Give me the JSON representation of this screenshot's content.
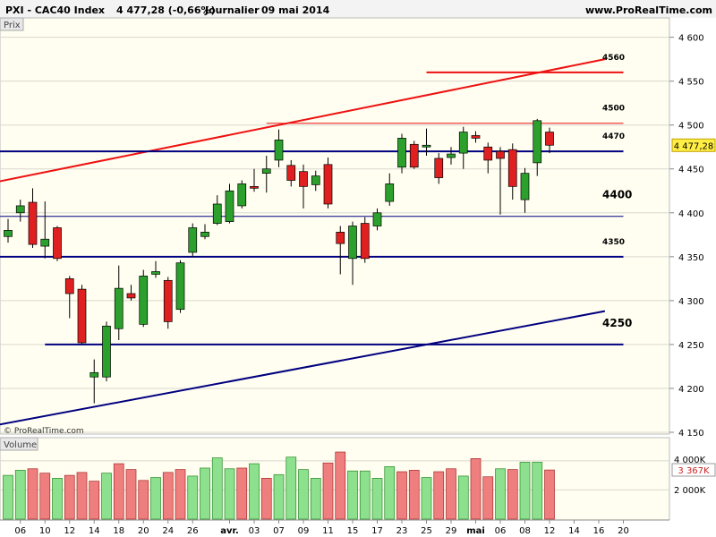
{
  "header": {
    "instrument": "PXI - CAC40 Index",
    "quote": "4 477,28 (-0,66%)",
    "timeframe": "Journalier",
    "date": "09 mai 2014",
    "site": "www.ProRealTime.com"
  },
  "price_panel": {
    "label": "Prix",
    "copyright": "© ProRealTime.com",
    "last_price_label": "4 477,28"
  },
  "volume_panel": {
    "label": "Volume",
    "ticks": [
      "4 000K",
      "2 000K"
    ],
    "last_volume_label": "3 367K"
  },
  "colors": {
    "background": "#fffef0",
    "up": "#2ca02c",
    "down": "#e02020",
    "up_volume": "#8de08d",
    "down_volume": "#ef7f7f",
    "support_line": "#000080",
    "resistance_line": "#ee1111"
  },
  "chart_data": [
    {
      "type": "candlestick",
      "title": "",
      "ylim": [
        4150,
        4620
      ],
      "y_ticks": [
        4150,
        4200,
        4250,
        4300,
        4350,
        4400,
        4450,
        4500,
        4550,
        4600
      ],
      "y_tick_labels": [
        "4 150",
        "4 200",
        "4 250",
        "4 300",
        "4 350",
        "4 400",
        "4 450",
        "4 500",
        "4 550",
        "4 600"
      ],
      "x_tick_labels": [
        {
          "i": 1,
          "label": "06"
        },
        {
          "i": 3,
          "label": "10"
        },
        {
          "i": 5,
          "label": "12"
        },
        {
          "i": 7,
          "label": "14"
        },
        {
          "i": 9,
          "label": "18"
        },
        {
          "i": 11,
          "label": "20"
        },
        {
          "i": 13,
          "label": "24"
        },
        {
          "i": 15,
          "label": "26"
        },
        {
          "i": 18,
          "label": "avr."
        },
        {
          "i": 20,
          "label": "03"
        },
        {
          "i": 22,
          "label": "07"
        },
        {
          "i": 24,
          "label": "09"
        },
        {
          "i": 26,
          "label": "11"
        },
        {
          "i": 28,
          "label": "15"
        },
        {
          "i": 30,
          "label": "17"
        },
        {
          "i": 32,
          "label": "23"
        },
        {
          "i": 34,
          "label": "25"
        },
        {
          "i": 36,
          "label": "29"
        },
        {
          "i": 38,
          "label": "mai"
        },
        {
          "i": 40,
          "label": "06"
        },
        {
          "i": 42,
          "label": "08"
        },
        {
          "i": 44,
          "label": "12"
        },
        {
          "i": 46,
          "label": "14"
        },
        {
          "i": 48,
          "label": "16"
        },
        {
          "i": 50,
          "label": "20"
        }
      ],
      "bold_x_labels": [
        "avr.",
        "mai"
      ],
      "candles": [
        {
          "o": 4373,
          "h": 4393,
          "l": 4366,
          "c": 4380
        },
        {
          "o": 4400,
          "h": 4415,
          "l": 4390,
          "c": 4408
        },
        {
          "o": 4412,
          "h": 4428,
          "l": 4360,
          "c": 4364
        },
        {
          "o": 4362,
          "h": 4413,
          "l": 4348,
          "c": 4370
        },
        {
          "o": 4383,
          "h": 4385,
          "l": 4345,
          "c": 4348
        },
        {
          "o": 4325,
          "h": 4328,
          "l": 4280,
          "c": 4308
        },
        {
          "o": 4313,
          "h": 4318,
          "l": 4250,
          "c": 4252
        },
        {
          "o": 4213,
          "h": 4233,
          "l": 4183,
          "c": 4218
        },
        {
          "o": 4213,
          "h": 4276,
          "l": 4208,
          "c": 4271
        },
        {
          "o": 4268,
          "h": 4340,
          "l": 4255,
          "c": 4314
        },
        {
          "o": 4308,
          "h": 4318,
          "l": 4300,
          "c": 4303
        },
        {
          "o": 4273,
          "h": 4335,
          "l": 4270,
          "c": 4328
        },
        {
          "o": 4330,
          "h": 4345,
          "l": 4326,
          "c": 4333
        },
        {
          "o": 4323,
          "h": 4327,
          "l": 4268,
          "c": 4276
        },
        {
          "o": 4290,
          "h": 4346,
          "l": 4286,
          "c": 4343
        },
        {
          "o": 4355,
          "h": 4388,
          "l": 4350,
          "c": 4383
        },
        {
          "o": 4373,
          "h": 4387,
          "l": 4370,
          "c": 4378
        },
        {
          "o": 4388,
          "h": 4420,
          "l": 4386,
          "c": 4410
        },
        {
          "o": 4390,
          "h": 4433,
          "l": 4388,
          "c": 4425
        },
        {
          "o": 4408,
          "h": 4437,
          "l": 4405,
          "c": 4433
        },
        {
          "o": 4430,
          "h": 4450,
          "l": 4424,
          "c": 4428
        },
        {
          "o": 4445,
          "h": 4465,
          "l": 4423,
          "c": 4450
        },
        {
          "o": 4460,
          "h": 4495,
          "l": 4452,
          "c": 4483
        },
        {
          "o": 4454,
          "h": 4460,
          "l": 4430,
          "c": 4437
        },
        {
          "o": 4447,
          "h": 4455,
          "l": 4405,
          "c": 4430
        },
        {
          "o": 4432,
          "h": 4448,
          "l": 4425,
          "c": 4442
        },
        {
          "o": 4455,
          "h": 4463,
          "l": 4405,
          "c": 4410
        },
        {
          "o": 4378,
          "h": 4385,
          "l": 4330,
          "c": 4365
        },
        {
          "o": 4348,
          "h": 4390,
          "l": 4318,
          "c": 4385
        },
        {
          "o": 4388,
          "h": 4395,
          "l": 4343,
          "c": 4348
        },
        {
          "o": 4385,
          "h": 4405,
          "l": 4380,
          "c": 4400
        },
        {
          "o": 4413,
          "h": 4445,
          "l": 4408,
          "c": 4433
        },
        {
          "o": 4452,
          "h": 4490,
          "l": 4445,
          "c": 4485
        },
        {
          "o": 4478,
          "h": 4482,
          "l": 4450,
          "c": 4452
        },
        {
          "o": 4475,
          "h": 4496,
          "l": 4465,
          "c": 4477
        },
        {
          "o": 4462,
          "h": 4468,
          "l": 4433,
          "c": 4440
        },
        {
          "o": 4463,
          "h": 4475,
          "l": 4455,
          "c": 4467
        },
        {
          "o": 4468,
          "h": 4498,
          "l": 4450,
          "c": 4492
        },
        {
          "o": 4488,
          "h": 4493,
          "l": 4480,
          "c": 4485
        },
        {
          "o": 4475,
          "h": 4480,
          "l": 4445,
          "c": 4460
        },
        {
          "o": 4470,
          "h": 4475,
          "l": 4398,
          "c": 4462
        },
        {
          "o": 4472,
          "h": 4479,
          "l": 4415,
          "c": 4430
        },
        {
          "o": 4415,
          "h": 4451,
          "l": 4400,
          "c": 4445
        },
        {
          "o": 4457,
          "h": 4507,
          "l": 4442,
          "c": 4505
        },
        {
          "o": 4492,
          "h": 4497,
          "l": 4468,
          "c": 4477
        }
      ],
      "horizontal_levels": [
        {
          "value": 4560,
          "label": "4560",
          "color": "#ee1111",
          "from_i": 34,
          "to_i": 50
        },
        {
          "value": 4502,
          "label": "4500",
          "color": "#ee1111",
          "from_i": 21,
          "to_i": 50
        },
        {
          "value": 4470,
          "label": "4470",
          "color": "#000080",
          "from_i": -1,
          "to_i": 50
        },
        {
          "value": 4396,
          "label": "4400",
          "color": "#000080",
          "from_i": -1,
          "to_i": 50
        },
        {
          "value": 4350,
          "label": "4350",
          "color": "#000080",
          "from_i": -1,
          "to_i": 50
        },
        {
          "value": 4250,
          "label": "4250",
          "color": "#000080",
          "from_i": 3,
          "to_i": 50
        }
      ],
      "trend_lines": [
        {
          "color": "#ee1111",
          "from": {
            "i": -1,
            "value": 4435
          },
          "to": {
            "i": 48.5,
            "value": 4575
          }
        },
        {
          "color": "#000080",
          "from": {
            "i": -1,
            "value": 4158
          },
          "to": {
            "i": 48.5,
            "value": 4288
          }
        }
      ]
    },
    {
      "type": "bar",
      "title": "Volume",
      "ylim": [
        0,
        5400
      ],
      "unit": "K",
      "values": [
        3000,
        3350,
        3450,
        3150,
        2800,
        3000,
        3200,
        2600,
        3150,
        3800,
        3400,
        2650,
        2850,
        3200,
        3400,
        2950,
        3500,
        4200,
        3450,
        3500,
        3800,
        2800,
        3050,
        4250,
        3400,
        2800,
        3850,
        4600,
        3300,
        3300,
        2800,
        3600,
        3250,
        3350,
        2850,
        3250,
        3450,
        2950,
        4150,
        2900,
        3450,
        3400,
        3900,
        3900,
        3367
      ],
      "direction": [
        "up",
        "up",
        "down",
        "down",
        "up",
        "down",
        "down",
        "down",
        "up",
        "down",
        "down",
        "down",
        "up",
        "down",
        "down",
        "up",
        "up",
        "up",
        "up",
        "down",
        "up",
        "down",
        "up",
        "up",
        "up",
        "up",
        "down",
        "down",
        "up",
        "up",
        "up",
        "up",
        "down",
        "down",
        "up",
        "down",
        "down",
        "up",
        "down",
        "down",
        "up",
        "down",
        "up",
        "up",
        "down"
      ]
    }
  ]
}
